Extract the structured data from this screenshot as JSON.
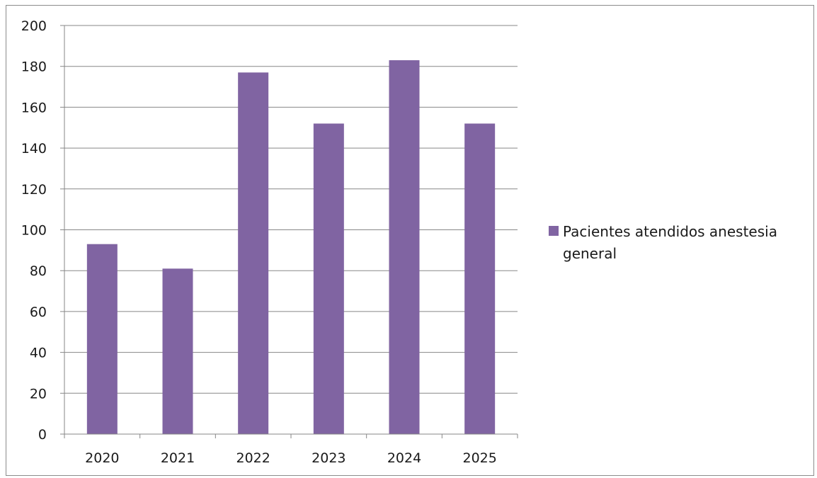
{
  "chart_data": {
    "type": "bar",
    "categories": [
      "2020",
      "2021",
      "2022",
      "2023",
      "2024",
      "2025"
    ],
    "series": [
      {
        "name": "Pacientes atendidos anestesia general",
        "values": [
          93,
          81,
          177,
          152,
          183,
          152
        ]
      }
    ],
    "ylim": [
      0,
      200
    ],
    "yticks": [
      0,
      20,
      40,
      60,
      80,
      100,
      120,
      140,
      160,
      180,
      200
    ],
    "title": "",
    "xlabel": "",
    "ylabel": "",
    "grid": true,
    "legend": {
      "position": "right",
      "lines": [
        "Pacientes atendidos anestesia",
        "general"
      ]
    },
    "colors": {
      "bar": "#8064a2",
      "grid": "#878787",
      "axis": "#878787",
      "frame": "#8c8c8c"
    }
  }
}
